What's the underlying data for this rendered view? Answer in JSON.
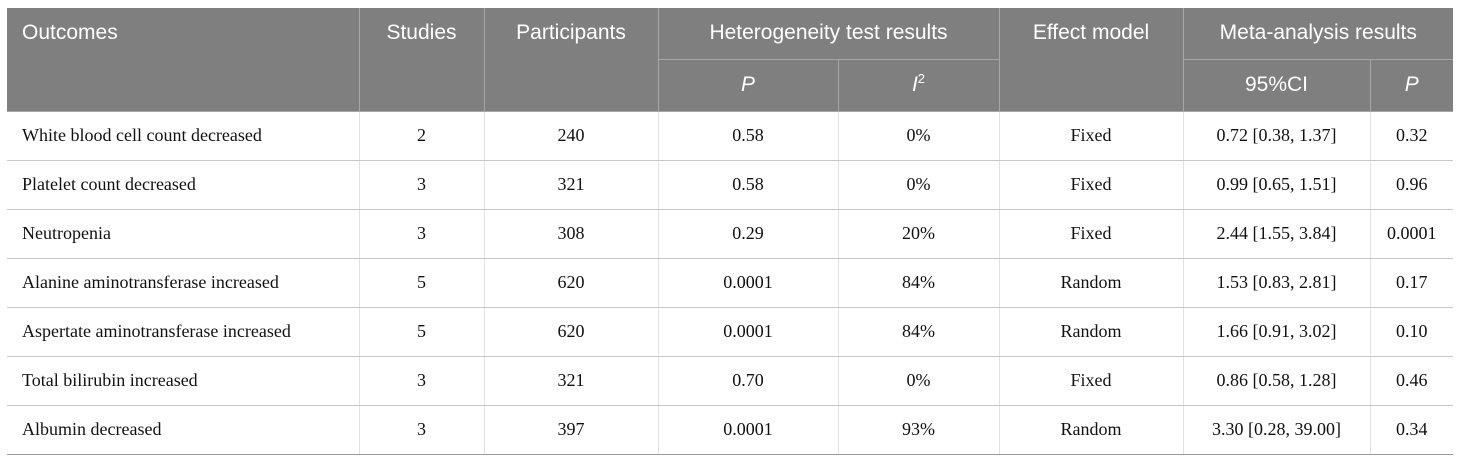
{
  "header": {
    "outcomes": "Outcomes",
    "studies": "Studies",
    "participants": "Participants",
    "heterogeneity": "Heterogeneity test results",
    "effect_model": "Effect model",
    "meta_analysis": "Meta-analysis results",
    "het_p": "P",
    "het_i": "I",
    "het_i_sup": "2",
    "ci": "95%CI",
    "meta_p": "P"
  },
  "rows": [
    {
      "outcome": "White blood cell count decreased",
      "studies": "2",
      "participants": "240",
      "het_p": "0.58",
      "i2": "0%",
      "model": "Fixed",
      "ci": "0.72 [0.38, 1.37]",
      "p": "0.32"
    },
    {
      "outcome": "Platelet count decreased",
      "studies": "3",
      "participants": "321",
      "het_p": "0.58",
      "i2": "0%",
      "model": "Fixed",
      "ci": "0.99 [0.65, 1.51]",
      "p": "0.96"
    },
    {
      "outcome": "Neutropenia",
      "studies": "3",
      "participants": "308",
      "het_p": "0.29",
      "i2": "20%",
      "model": "Fixed",
      "ci": "2.44 [1.55, 3.84]",
      "p": "0.0001"
    },
    {
      "outcome": "Alanine aminotransferase increased",
      "studies": "5",
      "participants": "620",
      "het_p": "0.0001",
      "i2": "84%",
      "model": "Random",
      "ci": "1.53 [0.83, 2.81]",
      "p": "0.17"
    },
    {
      "outcome": "Aspertate aminotransferase increased",
      "studies": "5",
      "participants": "620",
      "het_p": "0.0001",
      "i2": "84%",
      "model": "Random",
      "ci": "1.66 [0.91, 3.02]",
      "p": "0.10"
    },
    {
      "outcome": "Total bilirubin increased",
      "studies": "3",
      "participants": "321",
      "het_p": "0.70",
      "i2": "0%",
      "model": "Fixed",
      "ci": "0.86 [0.58, 1.28]",
      "p": "0.46"
    },
    {
      "outcome": "Albumin decreased",
      "studies": "3",
      "participants": "397",
      "het_p": "0.0001",
      "i2": "93%",
      "model": "Random",
      "ci": "3.30 [0.28, 39.00]",
      "p": "0.34"
    }
  ]
}
